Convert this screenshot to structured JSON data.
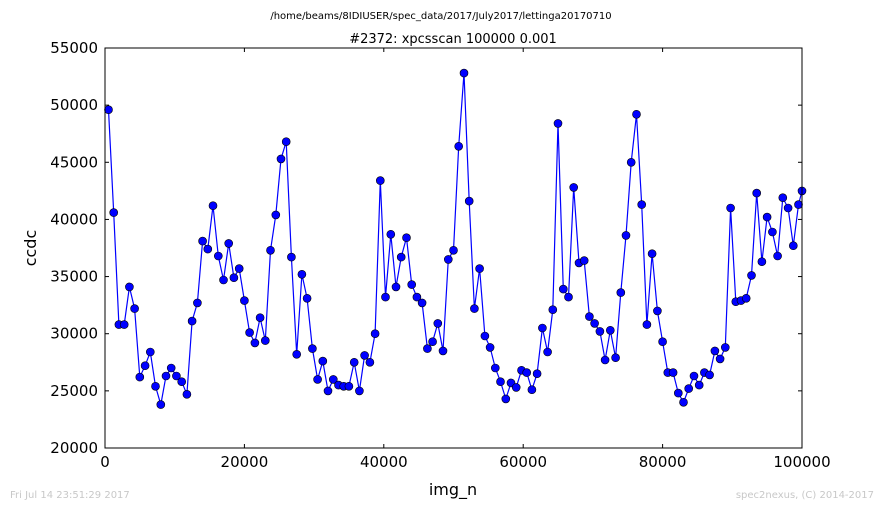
{
  "suptitle": "/home/beams/8IDIUSER/spec_data/2017/July2017/lettinga20170710",
  "footer": {
    "left": "Fri Jul 14 23:51:29 2017",
    "right": "spec2nexus, (C) 2014-2017"
  },
  "chart_data": {
    "type": "line",
    "title": "#2372: xpcsscan 100000 0.001",
    "xlabel": "img_n",
    "ylabel": "ccdc",
    "xlim": [
      0,
      100000
    ],
    "ylim": [
      20000,
      55000
    ],
    "xticks": [
      0,
      20000,
      40000,
      60000,
      80000,
      100000
    ],
    "yticks": [
      20000,
      25000,
      30000,
      35000,
      40000,
      45000,
      50000,
      55000
    ],
    "grid": false,
    "marker": "circle",
    "color": "#0000ff",
    "series": [
      {
        "x": [
          500,
          1250,
          2000,
          2750,
          3500,
          4250,
          5000,
          5750,
          6500,
          7250,
          8000,
          8750,
          9500,
          10250,
          11000,
          11750,
          12500,
          13250,
          14000,
          14750,
          15500,
          16250,
          17000,
          17750,
          18500,
          19250,
          20000,
          20750,
          21500,
          22250,
          23000,
          23750,
          24500,
          25250,
          26000,
          26750,
          27500,
          28250,
          29000,
          29750,
          30500,
          31250,
          32000,
          32750,
          33500,
          34250,
          35000,
          35750,
          36500,
          37250,
          38000,
          38750,
          39500,
          40250,
          41000,
          41750,
          42500,
          43250,
          44000,
          44750,
          45500,
          46250,
          47000,
          47750,
          48500,
          49250,
          50000,
          50750,
          51500,
          52250,
          53000,
          53750,
          54500,
          55250,
          56000,
          56750,
          57500,
          58250,
          59000,
          59750,
          60500,
          61250,
          62000,
          62750,
          63500,
          64250,
          65000,
          65750,
          66500,
          67250,
          68000,
          68750,
          69500,
          70250,
          71000,
          71750,
          72500,
          73250,
          74000,
          74750,
          75500,
          76250,
          77000,
          77750,
          78500,
          79250,
          80000,
          80750,
          81500,
          82250,
          83000,
          83750,
          84500,
          85250,
          86000,
          86750,
          87500,
          88250,
          89000,
          89750,
          90500,
          91250,
          92000,
          92750,
          93500,
          94250,
          95000,
          95750,
          96500,
          97250,
          98000,
          98750,
          99500,
          100000
        ],
        "y": [
          49600,
          40600,
          30800,
          30800,
          34100,
          32200,
          26200,
          27200,
          28400,
          25400,
          23800,
          26300,
          27000,
          26300,
          25800,
          24700,
          31100,
          32700,
          38100,
          37400,
          41200,
          36800,
          34700,
          37900,
          34900,
          35700,
          32900,
          30100,
          29200,
          31400,
          29400,
          37300,
          40400,
          45300,
          46800,
          36700,
          28200,
          35200,
          33100,
          28700,
          26000,
          27600,
          25000,
          26000,
          25500,
          25400,
          25400,
          27500,
          25000,
          28100,
          27500,
          30000,
          43400,
          33200,
          38700,
          34100,
          36700,
          38400,
          34300,
          33200,
          32700,
          28700,
          29300,
          30900,
          28500,
          36500,
          37300,
          46400,
          52800,
          41600,
          32200,
          35700,
          29800,
          28800,
          27000,
          25800,
          24300,
          25700,
          25300,
          26800,
          26600,
          25100,
          26500,
          30500,
          28400,
          32100,
          48400,
          33900,
          33200,
          42800,
          36200,
          36400,
          31500,
          30900,
          30200,
          27700,
          30300,
          27900,
          33600,
          38600,
          45000,
          49200,
          41300,
          30800,
          37000,
          32000,
          29300,
          26600,
          26600,
          24800,
          24000,
          25200,
          26300,
          25500,
          26600,
          26400,
          28500,
          27800,
          28800,
          41000,
          32800,
          32900,
          33100,
          35100,
          42300,
          36300,
          40200,
          38900,
          36800,
          41900,
          41000,
          37700,
          41300,
          42500
        ]
      }
    ]
  }
}
